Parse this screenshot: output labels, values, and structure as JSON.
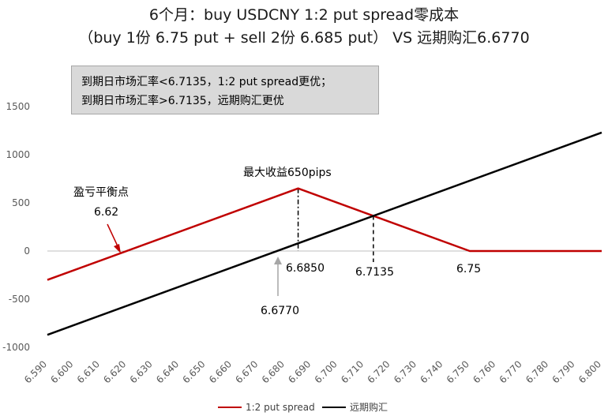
{
  "title_line1": "6个月：buy USDCNY  1:2 put spread零成本",
  "title_line2": "（buy 1份 6.75 put + sell 2份 6.685 put）  VS  远期购汇6.6770",
  "note_lines": [
    "到期日市场汇率<6.7135，1:2 put spread更优；",
    "到期日市场汇率>6.7135，远期购汇更优"
  ],
  "annotations": {
    "max_profit": "最大收益650pips",
    "breakeven_label": "盈亏平衡点",
    "breakeven_value": "6.62",
    "strike_low": "6.6850",
    "crossover": "6.7135",
    "strike_high": "6.75",
    "forward_rate": "6.6770"
  },
  "colors": {
    "spread": "#c00000",
    "forward": "#000000",
    "arrow_grey": "#a6a6a6"
  },
  "chart_data": {
    "type": "line",
    "xlim": [
      6.59,
      6.8
    ],
    "ylim": [
      -1000,
      1500
    ],
    "yticks": [
      "-1000",
      "-500",
      "0",
      "500",
      "1000",
      "1500"
    ],
    "xticks": [
      "6.590",
      "6.600",
      "6.610",
      "6.620",
      "6.630",
      "6.640",
      "6.650",
      "6.660",
      "6.670",
      "6.680",
      "6.690",
      "6.700",
      "6.710",
      "6.720",
      "6.730",
      "6.740",
      "6.750",
      "6.760",
      "6.770",
      "6.780",
      "6.790",
      "6.800"
    ],
    "series": [
      {
        "name": "1:2 put spread",
        "x": [
          6.59,
          6.685,
          6.75,
          6.8
        ],
        "y": [
          -300,
          650,
          0,
          0
        ]
      },
      {
        "name": "远期购汇",
        "x": [
          6.59,
          6.8
        ],
        "y": [
          -870,
          1230
        ]
      }
    ],
    "legend": "bottom"
  }
}
